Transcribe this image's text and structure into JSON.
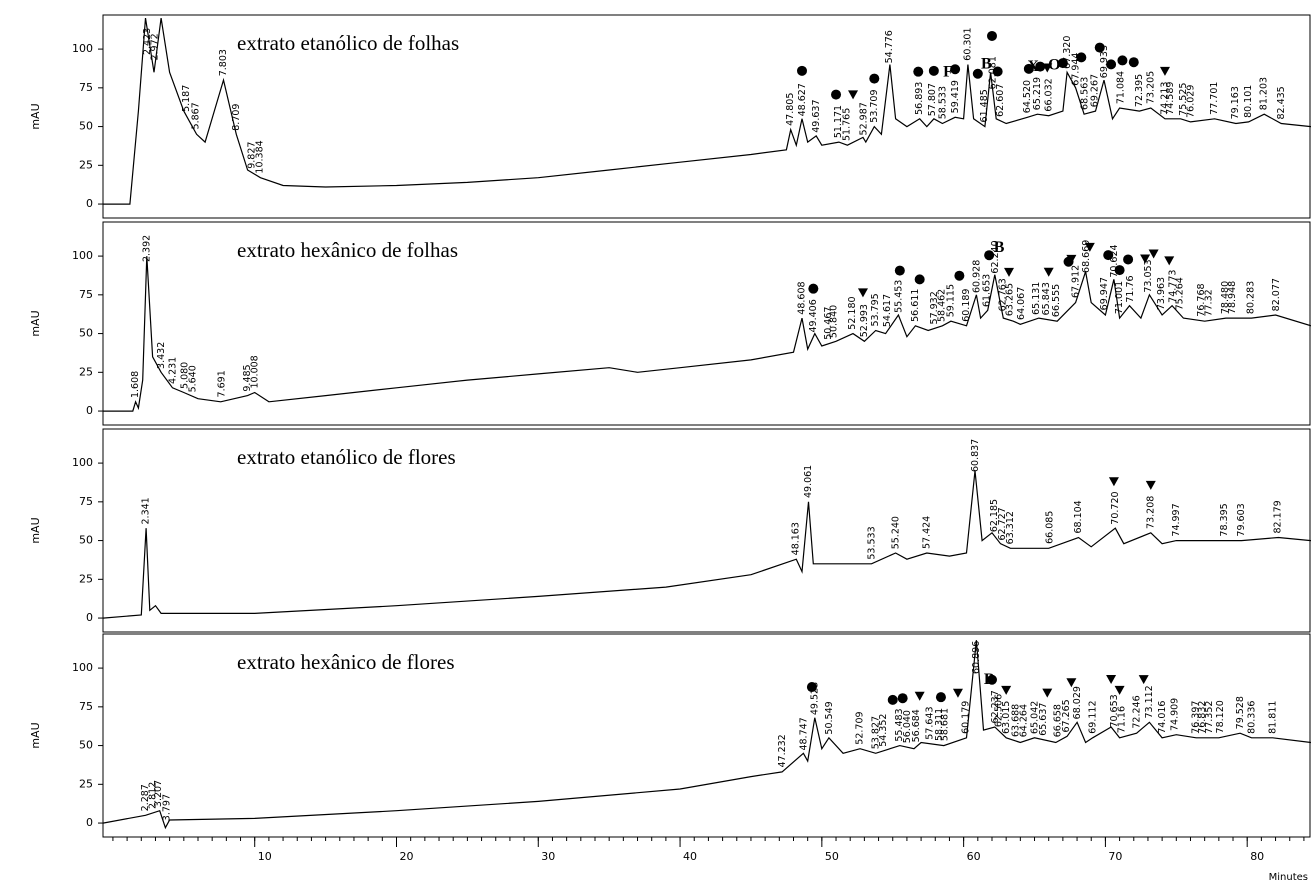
{
  "chart_data": [
    {
      "type": "line",
      "title": "extrato etanólico de folhas",
      "ylabel": "mAU",
      "color": "#000000",
      "xlim": [
        -0.7,
        84.5
      ],
      "ylim": [
        -9,
        122
      ],
      "yticks": [
        0,
        25,
        50,
        75,
        100
      ],
      "x": [
        -0.7,
        1.2,
        1.8,
        2.3,
        2.9,
        3.4,
        4.0,
        5.0,
        5.9,
        6.5,
        7.8,
        8.7,
        9.5,
        10.4,
        12,
        15,
        20,
        25,
        30,
        35,
        40,
        45,
        47.5,
        47.8,
        48.2,
        48.6,
        49,
        49.6,
        50,
        51.2,
        51.8,
        52.9,
        53.1,
        53.7,
        54.2,
        54.8,
        55.2,
        56,
        56.9,
        57.4,
        57.9,
        58.5,
        59.4,
        60,
        60.3,
        60.7,
        61.5,
        61.9,
        62.3,
        63,
        64.5,
        65.2,
        66,
        67,
        67.3,
        67.9,
        68.5,
        69.3,
        69.9,
        70.5,
        71,
        72.4,
        73.2,
        74.2,
        75.3,
        76,
        77.7,
        79.2,
        80.1,
        81.2,
        82.4,
        84.5
      ],
      "values": [
        0,
        0,
        60,
        120,
        85,
        120,
        85,
        60,
        45,
        40,
        80,
        45,
        22,
        17,
        12,
        11,
        12,
        14,
        17,
        22,
        27,
        32,
        35,
        48,
        38,
        55,
        40,
        44,
        38,
        40,
        38,
        43,
        40,
        50,
        45,
        90,
        55,
        50,
        55,
        50,
        55,
        52,
        56,
        55,
        90,
        55,
        50,
        85,
        55,
        52,
        56,
        58,
        57,
        60,
        85,
        75,
        58,
        60,
        80,
        55,
        62,
        60,
        62,
        55,
        55,
        53,
        55,
        52,
        53,
        58,
        52,
        50
      ],
      "peak_labels": [
        2.423,
        2.972,
        5.187,
        5.867,
        7.803,
        8.709,
        9.827,
        10.384,
        47.805,
        48.627,
        49.637,
        51.171,
        51.765,
        52.987,
        53.709,
        54.776,
        56.893,
        57.807,
        58.533,
        59.419,
        60.301,
        61.485,
        62.081,
        62.607,
        {
          "value": 64.52,
          "label": "64.520"
        },
        65.219,
        66.032,
        {
          "value": 67.32,
          "label": "67.320"
        },
        67.944,
        68.563,
        69.267,
        69.933,
        71.084,
        72.395,
        73.205,
        74.213,
        74.589,
        75.525,
        76.029,
        77.701,
        79.163,
        80.101,
        81.203,
        82.435
      ],
      "markers": [
        {
          "x": 48.6,
          "symbol": "circle"
        },
        {
          "x": 51.0,
          "symbol": "circle"
        },
        {
          "x": 52.2,
          "symbol": "triangle"
        },
        {
          "x": 53.7,
          "symbol": "circle"
        },
        {
          "x": 56.8,
          "symbol": "circle"
        },
        {
          "x": 57.9,
          "symbol": "circle"
        },
        {
          "x": 58.9,
          "symbol": "F"
        },
        {
          "x": 59.4,
          "symbol": "circle"
        },
        {
          "x": 61.0,
          "symbol": "circle"
        },
        {
          "x": 61.6,
          "symbol": "B"
        },
        {
          "x": 62.0,
          "symbol": "circle"
        },
        {
          "x": 62.4,
          "symbol": "circle"
        },
        {
          "x": 64.6,
          "symbol": "circle"
        },
        {
          "x": 64.9,
          "symbol": "X"
        },
        {
          "x": 65.4,
          "symbol": "circle"
        },
        {
          "x": 65.9,
          "symbol": "triangle"
        },
        {
          "x": 66.4,
          "symbol": "O"
        },
        {
          "x": 67.0,
          "symbol": "circle"
        },
        {
          "x": 68.3,
          "symbol": "circle"
        },
        {
          "x": 69.6,
          "symbol": "circle"
        },
        {
          "x": 70.4,
          "symbol": "circle"
        },
        {
          "x": 71.2,
          "symbol": "circle"
        },
        {
          "x": 72.0,
          "symbol": "circle"
        },
        {
          "x": 74.2,
          "symbol": "triangle"
        }
      ]
    },
    {
      "type": "line",
      "title": "extrato hexânico de folhas",
      "ylabel": "mAU",
      "color": "#000000",
      "xlim": [
        -0.7,
        84.5
      ],
      "ylim": [
        -9,
        122
      ],
      "yticks": [
        0,
        25,
        50,
        75,
        100
      ],
      "x": [
        -0.7,
        1.4,
        1.6,
        1.8,
        2.1,
        2.39,
        2.8,
        3.4,
        4.2,
        5,
        6,
        7.6,
        9.5,
        10,
        11,
        15,
        20,
        25,
        30,
        35,
        37,
        40,
        45,
        48,
        48.6,
        49,
        49.5,
        50,
        51,
        52.2,
        53,
        53.8,
        54.5,
        55.4,
        56,
        56.6,
        57.5,
        58.5,
        59.1,
        60.2,
        60.9,
        61.2,
        61.7,
        62.2,
        62.8,
        63.5,
        64,
        65.3,
        66.6,
        67.9,
        68.6,
        69,
        70,
        70.6,
        71,
        71.7,
        72.5,
        73.1,
        74,
        74.7,
        75.5,
        77,
        78.5,
        80.3,
        82,
        84.5
      ],
      "values": [
        0,
        0,
        6,
        2,
        20,
        100,
        35,
        25,
        15,
        12,
        8,
        6,
        10,
        12,
        6,
        10,
        15,
        20,
        24,
        28,
        25,
        28,
        33,
        38,
        60,
        40,
        50,
        42,
        45,
        50,
        45,
        52,
        50,
        62,
        48,
        55,
        52,
        55,
        58,
        55,
        75,
        60,
        65,
        88,
        60,
        58,
        56,
        60,
        58,
        70,
        90,
        70,
        62,
        85,
        60,
        68,
        60,
        75,
        62,
        68,
        60,
        58,
        60,
        60,
        62,
        55
      ],
      "peak_labels": [
        1.608,
        2.392,
        3.432,
        4.231,
        {
          "value": 5.08,
          "label": "5.080"
        },
        {
          "value": 5.64,
          "label": "5.640"
        },
        7.691,
        9.485,
        10.008,
        48.608,
        49.406,
        50.467,
        {
          "value": 50.84,
          "label": "50.840"
        },
        {
          "value": 52.18,
          "label": "52.180"
        },
        52.993,
        53.795,
        54.617,
        55.453,
        56.611,
        57.932,
        58.462,
        59.115,
        60.189,
        60.928,
        61.653,
        {
          "value": 62.24,
          "label": "62.240"
        },
        62.763,
        63.265,
        64.067,
        65.131,
        65.843,
        66.555,
        67.912,
        68.669,
        69.947,
        70.624,
        71.001,
        71.76,
        73.053,
        73.963,
        74.773,
        75.264,
        76.768,
        77.32,
        {
          "value": 78.48,
          "label": "78.480"
        },
        78.948,
        80.283,
        82.077
      ],
      "markers": [
        {
          "x": 49.4,
          "symbol": "circle"
        },
        {
          "x": 52.9,
          "symbol": "triangle"
        },
        {
          "x": 55.5,
          "symbol": "circle"
        },
        {
          "x": 56.9,
          "symbol": "circle"
        },
        {
          "x": 59.7,
          "symbol": "circle"
        },
        {
          "x": 61.8,
          "symbol": "circle"
        },
        {
          "x": 62.5,
          "symbol": "B"
        },
        {
          "x": 63.2,
          "symbol": "triangle"
        },
        {
          "x": 66.0,
          "symbol": "triangle"
        },
        {
          "x": 67.4,
          "symbol": "circle"
        },
        {
          "x": 67.6,
          "symbol": "triangle"
        },
        {
          "x": 68.9,
          "symbol": "triangle"
        },
        {
          "x": 70.2,
          "symbol": "circle"
        },
        {
          "x": 71.0,
          "symbol": "circle"
        },
        {
          "x": 71.6,
          "symbol": "circle"
        },
        {
          "x": 72.8,
          "symbol": "triangle"
        },
        {
          "x": 73.4,
          "symbol": "triangle"
        },
        {
          "x": 74.5,
          "symbol": "triangle"
        }
      ]
    },
    {
      "type": "line",
      "title": "extrato etanólico de flores",
      "ylabel": "mAU",
      "color": "#000000",
      "xlim": [
        -0.7,
        84.5
      ],
      "ylim": [
        -9,
        122
      ],
      "yticks": [
        0,
        25,
        50,
        75,
        100
      ],
      "x": [
        -0.7,
        2.0,
        2.34,
        2.6,
        3.0,
        3.4,
        10,
        20,
        30,
        39,
        45,
        48.2,
        48.6,
        49.06,
        49.4,
        53.5,
        55.2,
        56,
        57.4,
        59,
        60.2,
        60.8,
        61.3,
        62,
        62.6,
        63.3,
        66,
        68.1,
        69,
        70.7,
        71.3,
        73.2,
        74,
        75,
        78.4,
        79.6,
        82.2,
        84.5
      ],
      "values": [
        0,
        2,
        58,
        5,
        8,
        3,
        3,
        8,
        14,
        20,
        28,
        38,
        30,
        75,
        35,
        35,
        42,
        38,
        42,
        40,
        42,
        95,
        50,
        55,
        48,
        45,
        45,
        52,
        46,
        58,
        48,
        55,
        48,
        50,
        50,
        50,
        52,
        50
      ],
      "peak_labels": [
        2.341,
        48.163,
        49.061,
        53.533,
        {
          "value": 55.24,
          "label": "55.240"
        },
        57.424,
        60.837,
        62.185,
        62.727,
        63.312,
        66.085,
        68.104,
        {
          "value": 70.72,
          "label": "70.720"
        },
        73.208,
        74.997,
        78.395,
        79.603,
        82.179
      ],
      "markers": [
        {
          "x": 70.6,
          "symbol": "triangle"
        },
        {
          "x": 73.2,
          "symbol": "triangle"
        }
      ]
    },
    {
      "type": "line",
      "title": "extrato hexânico de flores",
      "ylabel": "mAU",
      "xlabel": "Minutes",
      "color": "#000000",
      "xlim": [
        -0.7,
        84.5
      ],
      "xticks": [
        10,
        20,
        30,
        40,
        50,
        60,
        70,
        80
      ],
      "ylim": [
        -9,
        122
      ],
      "yticks": [
        0,
        25,
        50,
        75,
        100
      ],
      "x": [
        -0.7,
        2.3,
        3.3,
        3.7,
        4,
        10,
        20,
        30,
        40,
        45,
        47.2,
        48.7,
        49,
        49.5,
        50,
        50.5,
        51.5,
        52.7,
        53.8,
        55.5,
        56.5,
        57,
        58.6,
        60.2,
        60.9,
        61.4,
        62.2,
        63,
        64,
        65,
        66.5,
        67.3,
        68,
        68.6,
        69.1,
        70.4,
        71,
        72.2,
        73.1,
        74,
        75,
        76.4,
        78,
        79.5,
        80.3,
        81.8,
        84.5
      ],
      "values": [
        0,
        5,
        8,
        -3,
        2,
        3,
        8,
        14,
        22,
        30,
        33,
        45,
        40,
        68,
        48,
        55,
        45,
        48,
        45,
        50,
        48,
        52,
        50,
        55,
        118,
        60,
        62,
        55,
        52,
        55,
        52,
        56,
        65,
        52,
        55,
        62,
        55,
        58,
        65,
        55,
        57,
        55,
        55,
        58,
        55,
        55,
        52
      ],
      "peak_labels": [
        2.287,
        2.812,
        3.207,
        3.797,
        47.232,
        48.747,
        49.523,
        50.549,
        52.709,
        53.827,
        54.352,
        55.483,
        {
          "value": 56.04,
          "label": "56.040"
        },
        56.684,
        57.643,
        58.311,
        58.681,
        60.179,
        60.896,
        62.237,
        62.506,
        63.015,
        63.688,
        64.264,
        65.042,
        65.637,
        66.658,
        67.265,
        68.029,
        69.112,
        70.653,
        71.16,
        72.246,
        73.112,
        74.016,
        74.909,
        76.397,
        76.832,
        77.352,
        {
          "value": 78.12,
          "label": "78.120"
        },
        79.528,
        80.336,
        81.811
      ],
      "markers": [
        {
          "x": 49.3,
          "symbol": "circle"
        },
        {
          "x": 55.0,
          "symbol": "circle"
        },
        {
          "x": 55.7,
          "symbol": "circle"
        },
        {
          "x": 56.9,
          "symbol": "triangle"
        },
        {
          "x": 58.4,
          "symbol": "circle"
        },
        {
          "x": 59.6,
          "symbol": "triangle"
        },
        {
          "x": 61.8,
          "symbol": "B"
        },
        {
          "x": 62.0,
          "symbol": "circle"
        },
        {
          "x": 63.0,
          "symbol": "triangle"
        },
        {
          "x": 65.9,
          "symbol": "triangle"
        },
        {
          "x": 67.6,
          "symbol": "triangle"
        },
        {
          "x": 70.4,
          "symbol": "triangle"
        },
        {
          "x": 71.0,
          "symbol": "triangle"
        },
        {
          "x": 72.7,
          "symbol": "triangle"
        }
      ]
    }
  ]
}
